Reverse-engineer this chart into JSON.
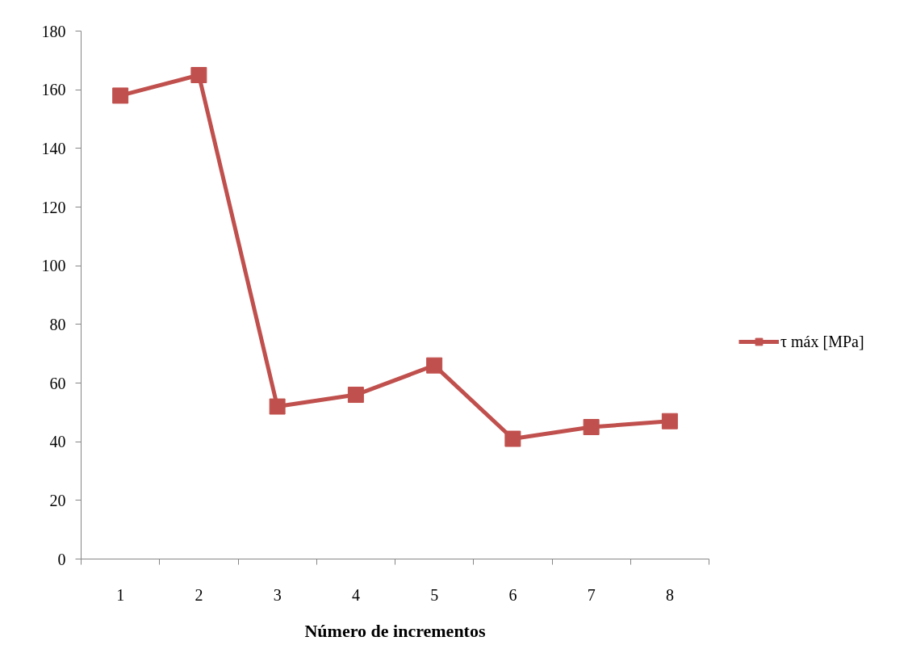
{
  "chart_data": {
    "type": "line",
    "xlabel": "Número de incrementos",
    "categories": [
      "1",
      "2",
      "3",
      "4",
      "5",
      "6",
      "7",
      "8"
    ],
    "series": [
      {
        "name": "τ máx [MPa]",
        "color": "#c0504d",
        "values": [
          158,
          165,
          52,
          56,
          66,
          41,
          45,
          47
        ]
      }
    ],
    "ylim": [
      0,
      180
    ],
    "yticks": [
      0,
      20,
      40,
      60,
      80,
      100,
      120,
      140,
      160,
      180
    ],
    "grid": false,
    "legend": "right",
    "marker": "square",
    "line_style": "solid"
  }
}
